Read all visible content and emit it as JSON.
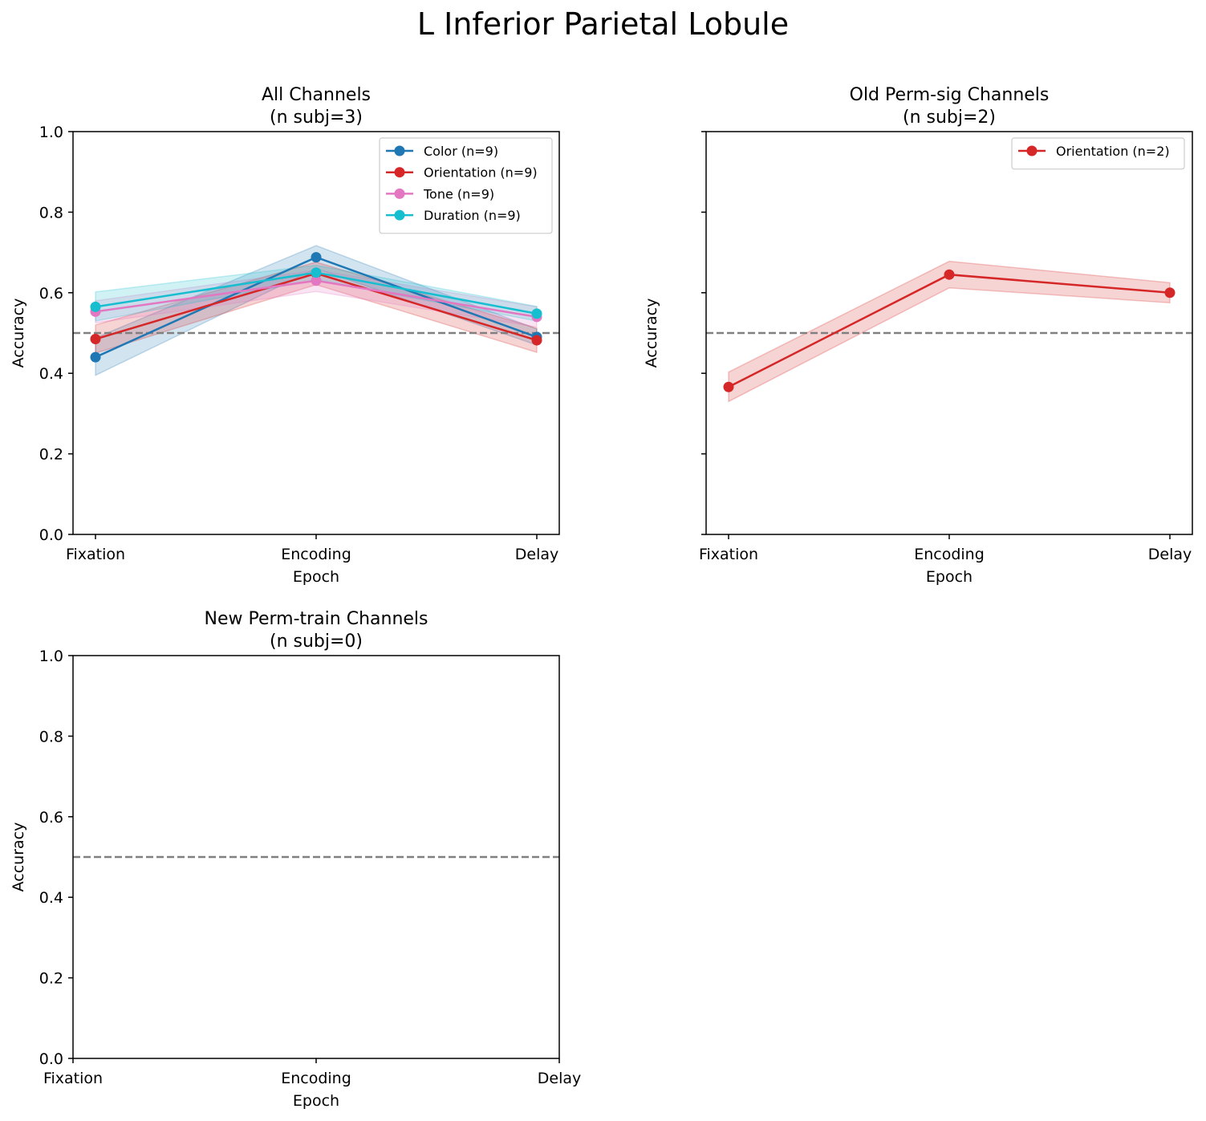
{
  "figure_title": "L Inferior Parietal Lobule",
  "colors": {
    "Color": "#1f77b4",
    "Orientation": "#d62728",
    "Tone": "#e377c2",
    "Duration": "#17becf",
    "chance_line": "#808080"
  },
  "chart_data": [
    {
      "type": "line",
      "title": "All Channels\n(n subj=3)",
      "xlabel": "Epoch",
      "ylabel": "Accuracy",
      "categories": [
        "Fixation",
        "Encoding",
        "Delay"
      ],
      "ylim": [
        0.0,
        1.0
      ],
      "yticks": [
        "0.0",
        "0.2",
        "0.4",
        "0.6",
        "0.8",
        "1.0"
      ],
      "show_ytick_labels": true,
      "chance_level": 0.5,
      "legend_position": "top-right",
      "series": [
        {
          "name": "Color (n=9)",
          "color_key": "Color",
          "values": [
            0.44,
            0.688,
            0.49
          ],
          "band": [
            [
              0.395,
              0.488
            ],
            [
              0.66,
              0.717
            ],
            [
              0.47,
              0.51
            ]
          ]
        },
        {
          "name": "Orientation (n=9)",
          "color_key": "Orientation",
          "values": [
            0.485,
            0.648,
            0.482
          ],
          "band": [
            [
              0.45,
              0.52
            ],
            [
              0.62,
              0.676
            ],
            [
              0.452,
              0.512
            ]
          ]
        },
        {
          "name": "Tone (n=9)",
          "color_key": "Tone",
          "values": [
            0.553,
            0.63,
            0.54
          ],
          "band": [
            [
              0.525,
              0.58
            ],
            [
              0.603,
              0.656
            ],
            [
              0.515,
              0.565
            ]
          ]
        },
        {
          "name": "Duration (n=9)",
          "color_key": "Duration",
          "values": [
            0.565,
            0.65,
            0.548
          ],
          "band": [
            [
              0.53,
              0.602
            ],
            [
              0.632,
              0.668
            ],
            [
              0.53,
              0.566
            ]
          ]
        }
      ]
    },
    {
      "type": "line",
      "title": "Old Perm-sig Channels\n(n subj=2)",
      "xlabel": "Epoch",
      "ylabel": "Accuracy",
      "categories": [
        "Fixation",
        "Encoding",
        "Delay"
      ],
      "ylim": [
        0.0,
        1.0
      ],
      "yticks": [
        "0.0",
        "0.2",
        "0.4",
        "0.6",
        "0.8",
        "1.0"
      ],
      "show_ytick_labels": false,
      "chance_level": 0.5,
      "legend_position": "top-right",
      "series": [
        {
          "name": "Orientation (n=2)",
          "color_key": "Orientation",
          "values": [
            0.366,
            0.645,
            0.6
          ],
          "band": [
            [
              0.33,
              0.403
            ],
            [
              0.612,
              0.678
            ],
            [
              0.575,
              0.625
            ]
          ]
        }
      ]
    },
    {
      "type": "line",
      "title": "New Perm-train Channels\n(n subj=0)",
      "xlabel": "Epoch",
      "ylabel": "Accuracy",
      "categories": [
        "Fixation",
        "Encoding",
        "Delay"
      ],
      "ylim": [
        0.0,
        1.0
      ],
      "yticks": [
        "0.0",
        "0.2",
        "0.4",
        "0.6",
        "0.8",
        "1.0"
      ],
      "show_ytick_labels": true,
      "chance_level": 0.5,
      "x_categories_at_edges": true,
      "series": []
    }
  ]
}
